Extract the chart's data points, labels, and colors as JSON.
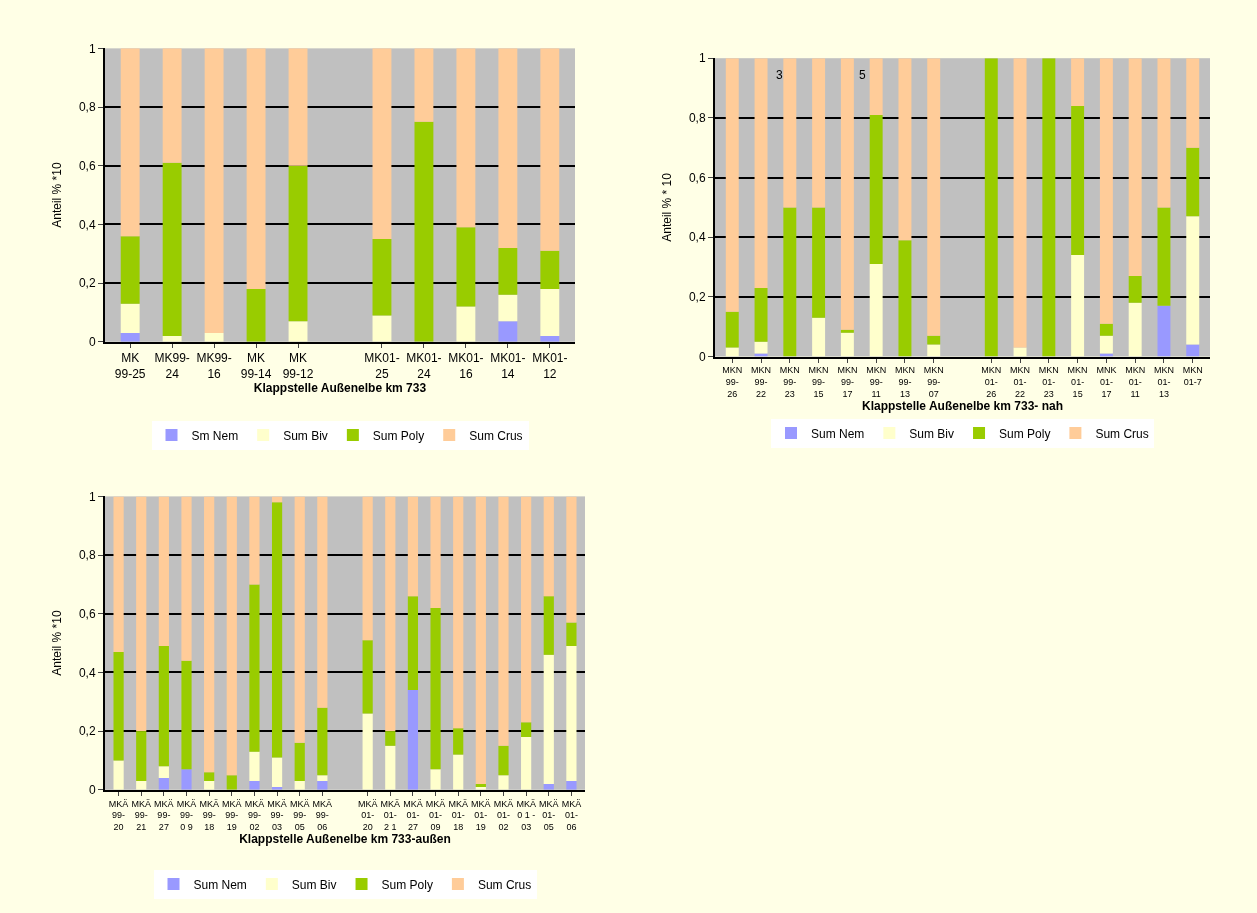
{
  "chart_data": [
    {
      "type": "bar",
      "stacked": true,
      "xlabel": "Klappstelle Außenelbe km 733",
      "ylabel": "Anteil % *10",
      "ylim": [
        0,
        1
      ],
      "yticks": [
        0,
        {
          "value": 0.2,
          "label": "0,2"
        },
        {
          "value": 0.4,
          "label": "0,4"
        },
        {
          "value": 0.6,
          "label": "0,6"
        },
        {
          "value": 0.8,
          "label": "0,8"
        },
        1
      ],
      "grid": "y",
      "legend": "bottom",
      "categories": [
        "MK\n99-25",
        "MK99-\n24",
        "MK99-\n16",
        "MK\n99-14",
        "MK\n99-12",
        null,
        "MK01-\n25",
        "MK01-\n24",
        "MK01-\n16",
        "MK01-\n14",
        "MK01-\n12"
      ],
      "series": [
        {
          "name": "Sm Nem",
          "color": "#9999ff",
          "values": [
            0.03,
            0,
            0,
            0,
            0,
            null,
            0,
            0,
            0,
            0.07,
            0.02
          ]
        },
        {
          "name": "Sum Biv",
          "color": "#ffffcc",
          "values": [
            0.1,
            0.02,
            0.03,
            0,
            0.07,
            null,
            0.09,
            0,
            0.12,
            0.09,
            0.16
          ]
        },
        {
          "name": "Sum Poly",
          "color": "#99cc00",
          "values": [
            0.23,
            0.59,
            0,
            0.18,
            0.53,
            null,
            0.26,
            0.75,
            0.27,
            0.16,
            0.13
          ]
        },
        {
          "name": "Sum Crus",
          "color": "#ffcc99",
          "values": [
            0.64,
            0.39,
            0.97,
            0.82,
            0.4,
            null,
            0.65,
            0.25,
            0.61,
            0.68,
            0.69
          ]
        }
      ]
    },
    {
      "type": "bar",
      "stacked": true,
      "xlabel": "Klappstelle Außenelbe km 733- nah",
      "ylabel": "Anteil % * 10",
      "ylim": [
        0,
        1
      ],
      "yticks": [
        0,
        {
          "value": 0.2,
          "label": "0,2"
        },
        {
          "value": 0.4,
          "label": "0,4"
        },
        {
          "value": 0.6,
          "label": "0,6"
        },
        {
          "value": 0.8,
          "label": "0,8"
        },
        1
      ],
      "grid": "y",
      "legend": "bottom",
      "annotations": [
        "3",
        "5"
      ],
      "categories": [
        "MKN\n99-\n26",
        "MKN\n99-\n22",
        "MKN\n99-\n23",
        "MKN\n99-\n15",
        "MKN\n99-\n17",
        "MKN\n99-\n11",
        "MKN\n99-\n13",
        "MKN\n99-\n07",
        null,
        "MKN\n01-\n26",
        "MKN\n01-\n22",
        "MKN\n01-\n23",
        "MKN\n01-\n15",
        "MNK\n01-\n17",
        "MKN\n01-\n11",
        "MKN\n01-\n13",
        "MKN\n01-7"
      ],
      "series": [
        {
          "name": "Sum Nem",
          "color": "#9999ff",
          "values": [
            0,
            0.01,
            0,
            0,
            0,
            0,
            0,
            0,
            null,
            0,
            0,
            0,
            0,
            0.01,
            0,
            0.17,
            0.04
          ]
        },
        {
          "name": "Sum Biv",
          "color": "#ffffcc",
          "values": [
            0.03,
            0.04,
            0,
            0.13,
            0.08,
            0.31,
            0,
            0.04,
            null,
            0,
            0.03,
            0,
            0.34,
            0.06,
            0.18,
            0,
            0.43
          ]
        },
        {
          "name": "Sum Poly",
          "color": "#99cc00",
          "values": [
            0.12,
            0.18,
            0.5,
            0.37,
            0.01,
            0.5,
            0.39,
            0.03,
            null,
            1,
            0,
            1,
            0.5,
            0.04,
            0.09,
            0.33,
            0.23
          ]
        },
        {
          "name": "Sum Crus",
          "color": "#ffcc99",
          "values": [
            0.85,
            0.77,
            0.5,
            0.5,
            0.91,
            0.19,
            0.61,
            0.93,
            null,
            0,
            0.97,
            0,
            0.16,
            0.89,
            0.73,
            0.5,
            0.3
          ]
        }
      ]
    },
    {
      "type": "bar",
      "stacked": true,
      "xlabel": "Klappstelle Außenelbe km 733-außen",
      "ylabel": "Anteil % *10",
      "ylim": [
        0,
        1
      ],
      "yticks": [
        0,
        {
          "value": 0.2,
          "label": "0,2"
        },
        {
          "value": 0.4,
          "label": "0,4"
        },
        {
          "value": 0.6,
          "label": "0,6"
        },
        {
          "value": 0.8,
          "label": "0,8"
        },
        1
      ],
      "grid": "y",
      "legend": "bottom",
      "categories": [
        "MKÄ\n99-\n20",
        "MKÄ\n99-\n21",
        "MKÄ\n99-\n27",
        "MKÄ\n99-\n0 9",
        "MKÄ\n99-\n18",
        "MKÄ\n99-\n19",
        "MKÄ\n99-\n02",
        "MKÄ\n99-\n03",
        "MKÄ\n99-\n05",
        "MKÄ\n99-\n06",
        null,
        "MKÄ\n01-\n20",
        "MKÄ\n01-\n2 1",
        "MKÄ\n01-\n27",
        "MKÄ\n01-\n09",
        "MKÄ\n01-\n18",
        "MKÄ\n01-\n19",
        "MKÄ\n01-\n02",
        "MKÄ\n0 1 -\n03",
        "MKÄ\n01-\n05",
        "MKÄ\n01-\n06"
      ],
      "series": [
        {
          "name": "Sum Nem",
          "color": "#9999ff",
          "values": [
            0,
            0,
            0.04,
            0.07,
            0,
            0,
            0.03,
            0.01,
            0,
            0.03,
            null,
            0,
            0,
            0.34,
            0,
            0,
            0,
            0,
            0,
            0.02,
            0.03
          ]
        },
        {
          "name": "Sum Biv",
          "color": "#ffffcc",
          "values": [
            0.1,
            0.03,
            0.04,
            0,
            0.03,
            0,
            0.1,
            0.1,
            0.03,
            0.02,
            null,
            0.26,
            0.15,
            0,
            0.07,
            0.12,
            0.01,
            0.05,
            0.18,
            0.44,
            0.46
          ]
        },
        {
          "name": "Sum Poly",
          "color": "#99cc00",
          "values": [
            0.37,
            0.17,
            0.41,
            0.37,
            0.03,
            0.05,
            0.57,
            0.87,
            0.13,
            0.23,
            null,
            0.25,
            0.05,
            0.32,
            0.55,
            0.09,
            0.01,
            0.1,
            0.05,
            0.2,
            0.08
          ]
        },
        {
          "name": "Sum Crus",
          "color": "#ffcc99",
          "values": [
            0.53,
            0.8,
            0.51,
            0.56,
            0.94,
            0.95,
            0.3,
            0.02,
            0.84,
            0.72,
            null,
            0.49,
            0.8,
            0.34,
            0.38,
            0.79,
            0.98,
            0.85,
            0.77,
            0.34,
            0.43
          ]
        }
      ]
    }
  ]
}
